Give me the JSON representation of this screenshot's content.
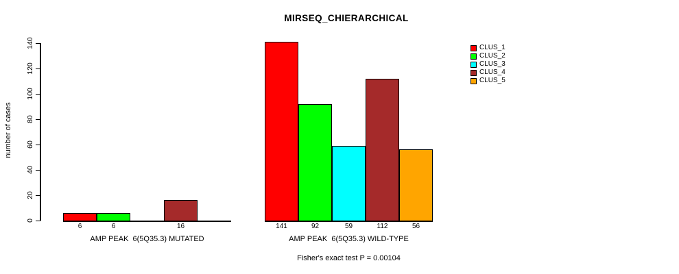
{
  "chart_data": {
    "type": "bar",
    "title": "MIRSEQ_CHIERARCHICAL",
    "ylabel": "number of cases",
    "ylim": [
      0,
      140
    ],
    "yticks": [
      0,
      20,
      40,
      60,
      80,
      100,
      120,
      140
    ],
    "grid": false,
    "legend_position": "top-right",
    "groups": [
      {
        "label": "AMP PEAK  6(5Q35.3) MUTATED"
      },
      {
        "label": "AMP PEAK  6(5Q35.3) WILD-TYPE"
      }
    ],
    "series": [
      {
        "name": "CLUS_1",
        "color": "#ff0000",
        "values": [
          6,
          141
        ]
      },
      {
        "name": "CLUS_2",
        "color": "#00ff00",
        "values": [
          6,
          92
        ]
      },
      {
        "name": "CLUS_3",
        "color": "#00ffff",
        "values": [
          0,
          59
        ]
      },
      {
        "name": "CLUS_4",
        "color": "#a52a2a",
        "values": [
          16,
          112
        ]
      },
      {
        "name": "CLUS_5",
        "color": "#ffa500",
        "values": [
          0,
          56
        ]
      }
    ],
    "bar_value_labels_visible_only_when_nonzero": true,
    "footnote": "Fisher's exact test P = 0.00104"
  }
}
